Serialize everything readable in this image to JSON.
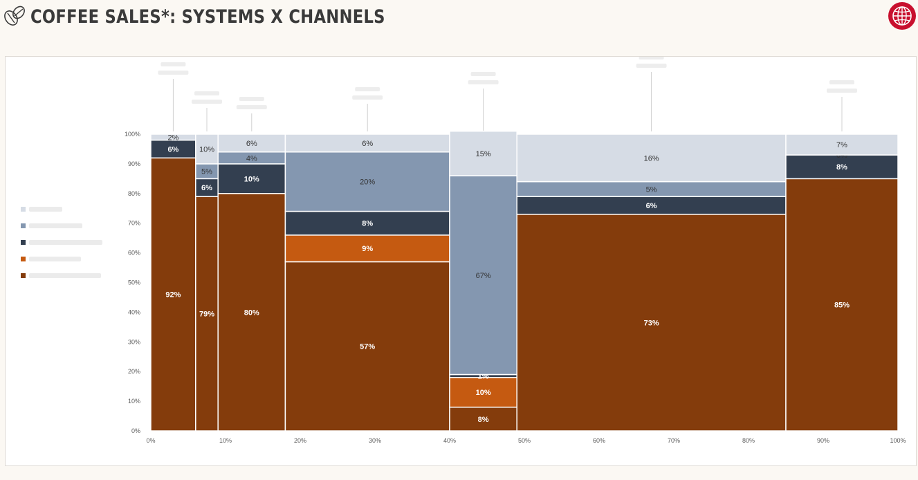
{
  "header": {
    "title": "COFFEE SALES*: SYSTEMS X CHANNELS",
    "logo_icon": "coffee-bean-icon",
    "globe_icon": "globe-icon",
    "accent_color": "#c8102e"
  },
  "chart_data": {
    "type": "bar",
    "subtype": "marimekko",
    "title": "",
    "xlabel": "",
    "ylabel": "",
    "xlim": [
      0,
      100
    ],
    "ylim": [
      0,
      100
    ],
    "x_ticks": [
      "0%",
      "10%",
      "20%",
      "30%",
      "40%",
      "50%",
      "60%",
      "70%",
      "80%",
      "90%",
      "100%"
    ],
    "y_ticks": [
      "0%",
      "10%",
      "20%",
      "30%",
      "40%",
      "50%",
      "60%",
      "70%",
      "80%",
      "90%",
      "100%"
    ],
    "legend_position": "left",
    "series_colors": [
      "#843c0c",
      "#c55a11",
      "#333f50",
      "#8497b0",
      "#d6dce5"
    ],
    "columns": [
      {
        "x0": 0,
        "x1": 6,
        "segments": [
          {
            "value": 92,
            "label": "92%"
          },
          {
            "value": 0,
            "label": ""
          },
          {
            "value": 6,
            "label": "6%"
          },
          {
            "value": 0,
            "label": ""
          },
          {
            "value": 2,
            "label": "2%"
          }
        ]
      },
      {
        "x0": 6,
        "x1": 9,
        "segments": [
          {
            "value": 79,
            "label": "79%"
          },
          {
            "value": 0,
            "label": ""
          },
          {
            "value": 6,
            "label": "6%"
          },
          {
            "value": 5,
            "label": "5%"
          },
          {
            "value": 10,
            "label": "10%"
          }
        ]
      },
      {
        "x0": 9,
        "x1": 18,
        "segments": [
          {
            "value": 80,
            "label": "80%"
          },
          {
            "value": 0,
            "label": ""
          },
          {
            "value": 10,
            "label": "10%"
          },
          {
            "value": 4,
            "label": "4%"
          },
          {
            "value": 6,
            "label": "6%"
          }
        ]
      },
      {
        "x0": 18,
        "x1": 40,
        "segments": [
          {
            "value": 57,
            "label": "57%"
          },
          {
            "value": 9,
            "label": "9%"
          },
          {
            "value": 8,
            "label": "8%"
          },
          {
            "value": 20,
            "label": "20%"
          },
          {
            "value": 6,
            "label": "6%"
          }
        ]
      },
      {
        "x0": 40,
        "x1": 49,
        "segments": [
          {
            "value": 8,
            "label": "8%"
          },
          {
            "value": 10,
            "label": "10%"
          },
          {
            "value": 1,
            "label": "1%"
          },
          {
            "value": 67,
            "label": "67%"
          },
          {
            "value": 15,
            "label": "15%"
          }
        ]
      },
      {
        "x0": 49,
        "x1": 85,
        "segments": [
          {
            "value": 73,
            "label": "73%"
          },
          {
            "value": 0,
            "label": ""
          },
          {
            "value": 6,
            "label": "6%"
          },
          {
            "value": 5,
            "label": "5%"
          },
          {
            "value": 16,
            "label": "16%"
          }
        ]
      },
      {
        "x0": 85,
        "x1": 100,
        "segments": [
          {
            "value": 85,
            "label": "85%"
          },
          {
            "value": 0,
            "label": ""
          },
          {
            "value": 8,
            "label": "8%"
          },
          {
            "value": 0,
            "label": "0%"
          },
          {
            "value": 7,
            "label": "7%"
          }
        ]
      }
    ]
  }
}
